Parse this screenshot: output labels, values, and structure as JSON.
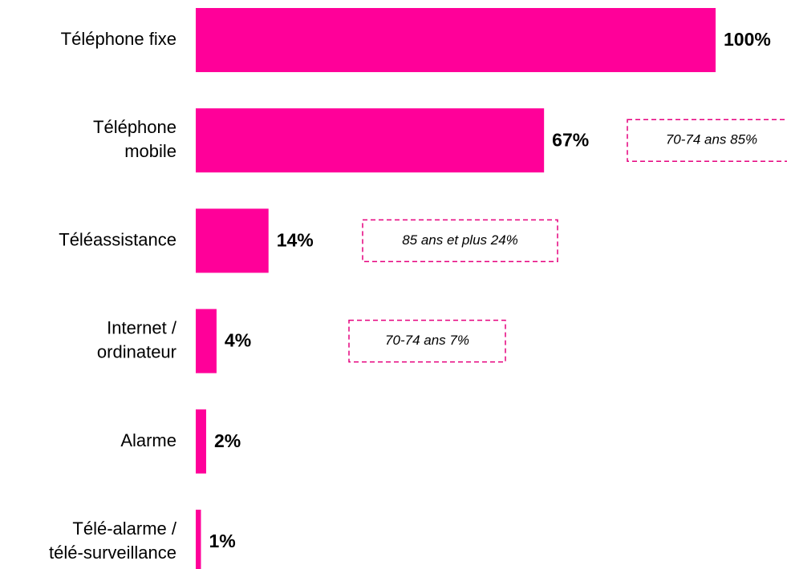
{
  "chart_data": {
    "type": "bar",
    "orientation": "horizontal",
    "categories": [
      "Téléphone fixe",
      "Téléphone\nmobile",
      "Téléassistance",
      "Internet /\nordinateur",
      "Alarme",
      "Télé-alarme /\ntélé-surveillance"
    ],
    "values": [
      100,
      67,
      14,
      4,
      2,
      1
    ],
    "value_labels": [
      "100%",
      "67%",
      "14%",
      "4%",
      "2%",
      "1%"
    ],
    "annotations": [
      null,
      "70-74 ans  85%",
      "85 ans et plus 24%",
      "70-74 ans  7%",
      null,
      null
    ],
    "color": "#ff0099",
    "xlim": [
      0,
      100
    ]
  }
}
